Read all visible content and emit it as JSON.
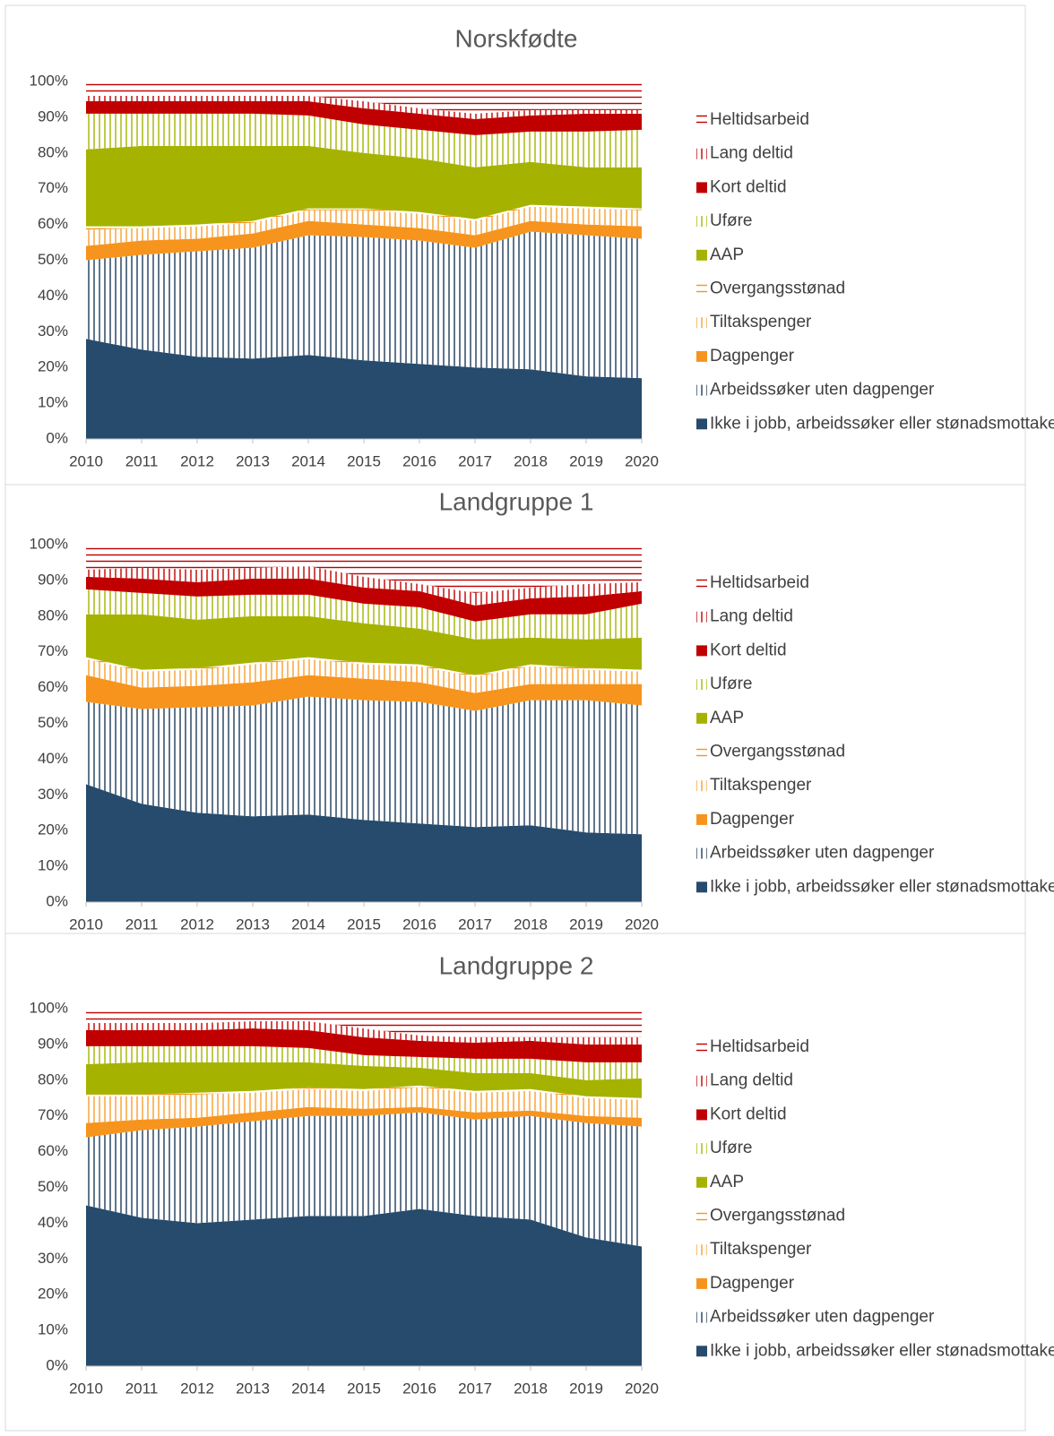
{
  "chart_data": [
    {
      "type": "stacked-area",
      "title": "Norskfødte",
      "x": [
        2010,
        2011,
        2012,
        2013,
        2014,
        2015,
        2016,
        2017,
        2018,
        2019,
        2020
      ],
      "xlim": [
        2010,
        2020
      ],
      "ylim": [
        0,
        100
      ],
      "yticks": [
        {
          "value": 0,
          "label": "0%"
        },
        {
          "value": 10,
          "label": "10%"
        },
        {
          "value": 20,
          "label": "20%"
        },
        {
          "value": 30,
          "label": "30%"
        },
        {
          "value": 40,
          "label": "40%"
        },
        {
          "value": 50,
          "label": "50%"
        },
        {
          "value": 60,
          "label": "60%"
        },
        {
          "value": 70,
          "label": "70%"
        },
        {
          "value": 80,
          "label": "80%"
        },
        {
          "value": 90,
          "label": "90%"
        },
        {
          "value": 100,
          "label": "100%"
        }
      ],
      "series": [
        {
          "name": "Ikke i jobb, arbeidssøker eller stønadsmottaker",
          "color": "#264b6c",
          "pattern": "solid",
          "values": [
            28,
            25,
            23,
            22.5,
            23.5,
            22,
            21,
            20,
            19.5,
            17.5,
            17
          ]
        },
        {
          "name": "Arbeidssøker uten dagpenger",
          "color": "#1f3b5c",
          "pattern": "vertical",
          "values": [
            22,
            26.5,
            29.5,
            31,
            33.5,
            34.5,
            34.5,
            33.5,
            38.5,
            39.5,
            39
          ]
        },
        {
          "name": "Dagpenger",
          "color": "#f7941d",
          "pattern": "solid",
          "values": [
            4,
            4,
            3.5,
            4,
            4,
            3.5,
            3.5,
            3.5,
            3,
            3,
            3.5
          ]
        },
        {
          "name": "Tiltakspenger",
          "color": "#f7a030",
          "pattern": "vertical",
          "values": [
            4.5,
            3.5,
            3.5,
            3,
            3,
            4,
            4,
            4,
            4,
            4.5,
            4.5
          ]
        },
        {
          "name": "Overgangsstønad",
          "color": "#f7941d",
          "pattern": "horizontal",
          "values": [
            1,
            0.5,
            0.5,
            0.5,
            0.5,
            0.5,
            0.5,
            0.5,
            0.5,
            0.5,
            0.5
          ]
        },
        {
          "name": "AAP",
          "color": "#a5b300",
          "pattern": "solid",
          "values": [
            21.5,
            22.5,
            22,
            21,
            17.5,
            15.5,
            15,
            14.5,
            12,
            11,
            11.5
          ]
        },
        {
          "name": "Uføre",
          "color": "#a5b300",
          "pattern": "vertical",
          "values": [
            10,
            9,
            9,
            9,
            8.5,
            8,
            8,
            9,
            8.5,
            10,
            10.5
          ]
        },
        {
          "name": "Kort deltid",
          "color": "#c00000",
          "pattern": "solid",
          "values": [
            3.5,
            3.5,
            3.5,
            3.5,
            4,
            4.5,
            4.5,
            4.5,
            4.5,
            5,
            4.5
          ]
        },
        {
          "name": "Lang deltid",
          "color": "#c00000",
          "pattern": "vertical",
          "values": [
            1.5,
            1.5,
            1.5,
            1.5,
            1.5,
            2,
            1.5,
            1.5,
            1.5,
            1,
            1
          ]
        },
        {
          "name": "Heltidsarbeid",
          "color": "#c00000",
          "pattern": "horizontal",
          "values": [
            4,
            4,
            4,
            4,
            4,
            5.5,
            7.5,
            9,
            8,
            8,
            8
          ]
        }
      ]
    },
    {
      "type": "stacked-area",
      "title": "Landgruppe 1",
      "x": [
        2010,
        2011,
        2012,
        2013,
        2014,
        2015,
        2016,
        2017,
        2018,
        2019,
        2020
      ],
      "xlim": [
        2010,
        2020
      ],
      "ylim": [
        0,
        100
      ],
      "yticks": [
        {
          "value": 0,
          "label": "0%"
        },
        {
          "value": 10,
          "label": "10%"
        },
        {
          "value": 20,
          "label": "20%"
        },
        {
          "value": 30,
          "label": "30%"
        },
        {
          "value": 40,
          "label": "40%"
        },
        {
          "value": 50,
          "label": "50%"
        },
        {
          "value": 60,
          "label": "60%"
        },
        {
          "value": 70,
          "label": "70%"
        },
        {
          "value": 80,
          "label": "80%"
        },
        {
          "value": 90,
          "label": "90%"
        },
        {
          "value": 100,
          "label": "100%"
        }
      ],
      "series": [
        {
          "name": "Ikke i jobb, arbeidssøker eller stønadsmottaker",
          "color": "#264b6c",
          "pattern": "solid",
          "values": [
            33,
            27.5,
            25,
            24,
            24.5,
            23,
            22,
            21,
            21.5,
            19.5,
            19
          ]
        },
        {
          "name": "Arbeidssøker uten dagpenger",
          "color": "#1f3b5c",
          "pattern": "vertical",
          "values": [
            23,
            26.5,
            29.5,
            31,
            33,
            33.5,
            34,
            32.5,
            35,
            37,
            36
          ]
        },
        {
          "name": "Dagpenger",
          "color": "#f7941d",
          "pattern": "solid",
          "values": [
            7.5,
            6,
            6,
            6.5,
            6,
            6,
            5.5,
            5,
            4.5,
            4.5,
            6
          ]
        },
        {
          "name": "Tiltakspenger",
          "color": "#f7a030",
          "pattern": "vertical",
          "values": [
            4.5,
            4.5,
            4.5,
            5,
            4.5,
            4,
            4.5,
            4.5,
            5,
            4,
            3.5
          ]
        },
        {
          "name": "Overgangsstønad",
          "color": "#f7941d",
          "pattern": "horizontal",
          "values": [
            0.5,
            0.5,
            0.5,
            0.5,
            0.5,
            0.5,
            0.5,
            0.5,
            0.5,
            0.5,
            0.5
          ]
        },
        {
          "name": "AAP",
          "color": "#a5b300",
          "pattern": "solid",
          "values": [
            12,
            15.5,
            13.5,
            13,
            11.5,
            11,
            10,
            10,
            7.5,
            8,
            9
          ]
        },
        {
          "name": "Uføre",
          "color": "#a5b300",
          "pattern": "vertical",
          "values": [
            7,
            6,
            6.5,
            6,
            6,
            5.5,
            6,
            5,
            6.5,
            7,
            9.5
          ]
        },
        {
          "name": "Kort deltid",
          "color": "#c00000",
          "pattern": "solid",
          "values": [
            3.5,
            4,
            4,
            4.5,
            4.5,
            4.5,
            4.5,
            4.5,
            4.5,
            5,
            3.5
          ]
        },
        {
          "name": "Lang deltid",
          "color": "#c00000",
          "pattern": "vertical",
          "values": [
            2,
            3,
            3.5,
            3,
            3.5,
            3,
            2,
            3.5,
            3,
            3.5,
            2.5
          ]
        },
        {
          "name": "Heltidsarbeid",
          "color": "#c00000",
          "pattern": "horizontal",
          "values": [
            7,
            6.5,
            7,
            6.5,
            6,
            9,
            11,
            13.5,
            12,
            11,
            10.5
          ]
        }
      ]
    },
    {
      "type": "stacked-area",
      "title": "Landgruppe 2",
      "x": [
        2010,
        2011,
        2012,
        2013,
        2014,
        2015,
        2016,
        2017,
        2018,
        2019,
        2020
      ],
      "xlim": [
        2010,
        2020
      ],
      "ylim": [
        0,
        100
      ],
      "yticks": [
        {
          "value": 0,
          "label": "0%"
        },
        {
          "value": 10,
          "label": "10%"
        },
        {
          "value": 20,
          "label": "20%"
        },
        {
          "value": 30,
          "label": "30%"
        },
        {
          "value": 40,
          "label": "40%"
        },
        {
          "value": 50,
          "label": "50%"
        },
        {
          "value": 60,
          "label": "60%"
        },
        {
          "value": 70,
          "label": "70%"
        },
        {
          "value": 80,
          "label": "80%"
        },
        {
          "value": 90,
          "label": "90%"
        },
        {
          "value": 100,
          "label": "100%"
        }
      ],
      "series": [
        {
          "name": "Ikke i jobb, arbeidssøker eller stønadsmottaker",
          "color": "#264b6c",
          "pattern": "solid",
          "values": [
            45,
            41.5,
            40,
            41,
            42,
            42,
            44,
            42,
            41,
            36,
            33.5
          ]
        },
        {
          "name": "Arbeidssøker uten dagpenger",
          "color": "#1f3b5c",
          "pattern": "vertical",
          "values": [
            19,
            24.5,
            27,
            27.5,
            28,
            28,
            27,
            27,
            29,
            32,
            33.5
          ]
        },
        {
          "name": "Dagpenger",
          "color": "#f7941d",
          "pattern": "solid",
          "values": [
            4,
            3,
            2.5,
            2.5,
            2.5,
            2,
            1.5,
            2,
            1.5,
            2,
            2.5
          ]
        },
        {
          "name": "Tiltakspenger",
          "color": "#f7a030",
          "pattern": "vertical",
          "values": [
            7.5,
            6.5,
            6.5,
            5.5,
            5,
            5,
            5.5,
            5.5,
            5.5,
            5,
            5
          ]
        },
        {
          "name": "Overgangsstønad",
          "color": "#f7941d",
          "pattern": "horizontal",
          "values": [
            0.5,
            0.5,
            0.5,
            0.5,
            0.5,
            0.5,
            0.5,
            0.5,
            0.5,
            0.5,
            0.5
          ]
        },
        {
          "name": "AAP",
          "color": "#a5b300",
          "pattern": "solid",
          "values": [
            8.5,
            9,
            8.5,
            8,
            7,
            6.5,
            5,
            5,
            4.5,
            4.5,
            5.5
          ]
        },
        {
          "name": "Uføre",
          "color": "#a5b300",
          "pattern": "vertical",
          "values": [
            5,
            4.5,
            4.5,
            4.5,
            4,
            3,
            3,
            4,
            4,
            5,
            4.5
          ]
        },
        {
          "name": "Kort deltid",
          "color": "#c00000",
          "pattern": "solid",
          "values": [
            4.5,
            4.5,
            4.5,
            5,
            5,
            5,
            4.5,
            4.5,
            5,
            5,
            5
          ]
        },
        {
          "name": "Lang deltid",
          "color": "#c00000",
          "pattern": "vertical",
          "values": [
            2,
            2,
            2,
            2,
            2.5,
            2.5,
            1.5,
            1.5,
            1,
            2,
            2
          ]
        },
        {
          "name": "Heltidsarbeid",
          "color": "#c00000",
          "pattern": "horizontal",
          "values": [
            4,
            4,
            4,
            3.5,
            3.5,
            5.5,
            7.5,
            8,
            8,
            8,
            8
          ]
        }
      ]
    }
  ]
}
